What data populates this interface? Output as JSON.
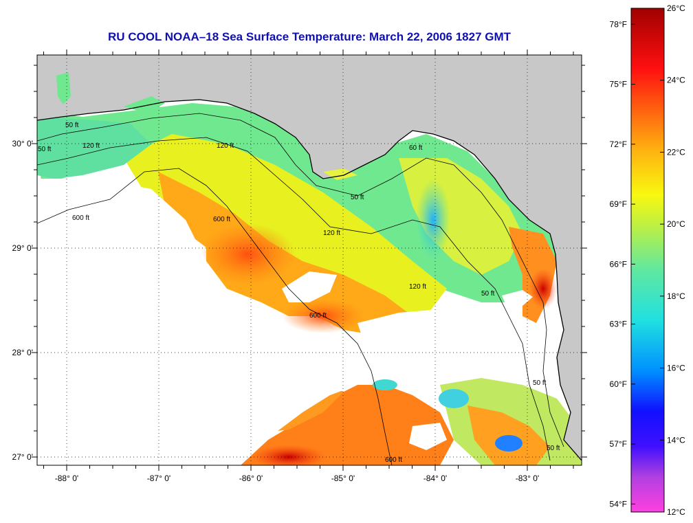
{
  "title": "RU COOL  NOAA–18  Sea Surface Temperature:  March 22, 2006 1827 GMT",
  "map": {
    "lon_ticks": [
      {
        "value": -88,
        "label": "-88° 0'"
      },
      {
        "value": -87,
        "label": "-87° 0'"
      },
      {
        "value": -86,
        "label": "-86° 0'"
      },
      {
        "value": -85,
        "label": "-85° 0'"
      },
      {
        "value": -84,
        "label": "-84° 0'"
      },
      {
        "value": -83,
        "label": "-83° 0'"
      }
    ],
    "lat_ticks": [
      {
        "value": 30,
        "label": "30° 0'"
      },
      {
        "value": 29,
        "label": "29° 0'"
      },
      {
        "value": 28,
        "label": "28° 0'"
      },
      {
        "value": 27,
        "label": "27° 0'"
      }
    ],
    "contour_labels": [
      "50 ft",
      "120 ft",
      "600 ft",
      "50 ft",
      "60 ft",
      "600 ft",
      "120 ft",
      "50 ft",
      "120 ft",
      "600 ft",
      "50 ft",
      "50 ft",
      "50 ft",
      "120 ft",
      "600 ft"
    ],
    "colors": {
      "land": "#c8c8c8",
      "cloud": "#ffffff",
      "gridline": "#000000"
    }
  },
  "colorbar": {
    "celsius_labels": [
      "26°C",
      "24°C",
      "22°C",
      "20°C",
      "18°C",
      "16°C",
      "14°C",
      "12°C"
    ],
    "fahrenheit_labels": [
      "78°F",
      "75°F",
      "72°F",
      "69°F",
      "66°F",
      "63°F",
      "60°F",
      "57°F",
      "54°F"
    ],
    "range_celsius": [
      12,
      26
    ],
    "gradient_colors": [
      "#ff40e0",
      "#9040e0",
      "#1010ff",
      "#0080ff",
      "#20e0e0",
      "#60e8a0",
      "#b0f040",
      "#f8f810",
      "#ffb010",
      "#ff6010",
      "#ff1010",
      "#a00000"
    ]
  }
}
